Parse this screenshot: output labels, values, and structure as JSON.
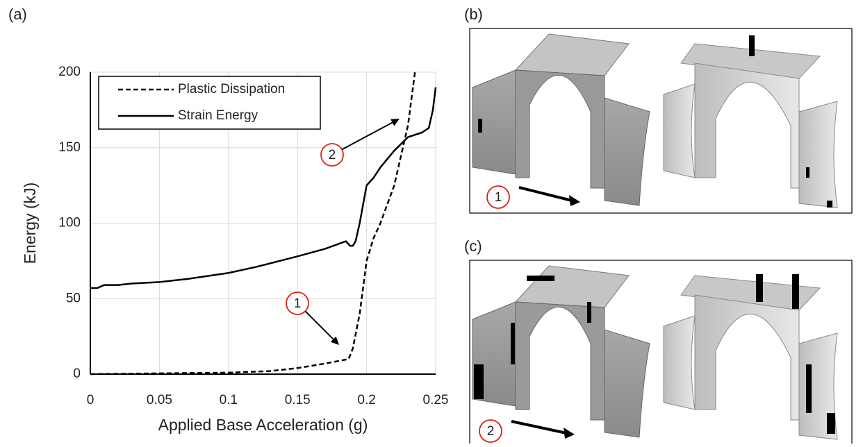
{
  "chart_data": {
    "type": "line",
    "panel_label": "(a)",
    "xlabel": "Applied Base Acceleration (g)",
    "ylabel": "Energy (kJ)",
    "xlim": [
      0,
      0.25
    ],
    "ylim": [
      0,
      200
    ],
    "xticks": [
      0,
      0.05,
      0.1,
      0.15,
      0.2,
      0.25
    ],
    "yticks": [
      0,
      50,
      100,
      150,
      200
    ],
    "grid": true,
    "legend": "upper left",
    "series": [
      {
        "name": "Plastic Dissipation",
        "color": "#000000",
        "line_style": "dashed",
        "x": [
          0,
          0.05,
          0.1,
          0.13,
          0.15,
          0.17,
          0.187,
          0.19,
          0.195,
          0.2,
          0.205,
          0.21,
          0.22,
          0.23,
          0.235
        ],
        "values": [
          0,
          0.5,
          1,
          2,
          4,
          7,
          10,
          17,
          40,
          75,
          90,
          100,
          125,
          165,
          200
        ]
      },
      {
        "name": "Strain Energy",
        "color": "#000000",
        "line_style": "solid",
        "x": [
          0,
          0.005,
          0.01,
          0.02,
          0.03,
          0.05,
          0.07,
          0.1,
          0.12,
          0.15,
          0.17,
          0.185,
          0.188,
          0.19,
          0.192,
          0.195,
          0.2,
          0.205,
          0.21,
          0.22,
          0.23,
          0.24,
          0.245,
          0.248,
          0.25
        ],
        "values": [
          57,
          57,
          59,
          59,
          60,
          61,
          63,
          67,
          71,
          78,
          83,
          88,
          85,
          85,
          88,
          100,
          125,
          130,
          137,
          148,
          157,
          160,
          163,
          175,
          190
        ]
      }
    ],
    "annotations": [
      {
        "text": "1"
      },
      {
        "text": "2"
      }
    ]
  },
  "panels": [
    {
      "label": "(b)",
      "marker": "1"
    },
    {
      "label": "(c)",
      "marker": "2"
    }
  ]
}
